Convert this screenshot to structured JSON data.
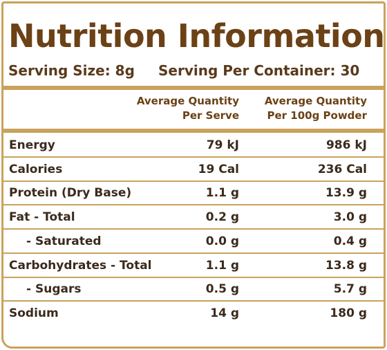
{
  "header": {
    "title": "Nutrition Information",
    "serving_size": "Serving Size: 8g",
    "servings_per_container": "Serving Per Container: 30"
  },
  "table": {
    "columns": [
      [
        "Average Quantity",
        "Per Serve"
      ],
      [
        "Average Quantity",
        "Per 100g Powder"
      ]
    ],
    "rows": [
      {
        "label": "Energy",
        "per_serve": "79 kJ",
        "per_100g": "986 kJ",
        "indent": false
      },
      {
        "label": "Calories",
        "per_serve": "19 Cal",
        "per_100g": "236 Cal",
        "indent": false
      },
      {
        "label": "Protein (Dry Base)",
        "per_serve": "1.1 g",
        "per_100g": "13.9 g",
        "indent": false
      },
      {
        "label": "Fat - Total",
        "per_serve": "0.2 g",
        "per_100g": "3.0 g",
        "indent": false
      },
      {
        "label": "- Saturated",
        "per_serve": "0.0 g",
        "per_100g": "0.4 g",
        "indent": true
      },
      {
        "label": "Carbohydrates - Total",
        "per_serve": "1.1 g",
        "per_100g": "13.8 g",
        "indent": false
      },
      {
        "label": "- Sugars",
        "per_serve": "0.5 g",
        "per_100g": "5.7 g",
        "indent": true
      },
      {
        "label": "Sodium",
        "per_serve": "14 g",
        "per_100g": "180 g",
        "indent": false
      }
    ]
  }
}
